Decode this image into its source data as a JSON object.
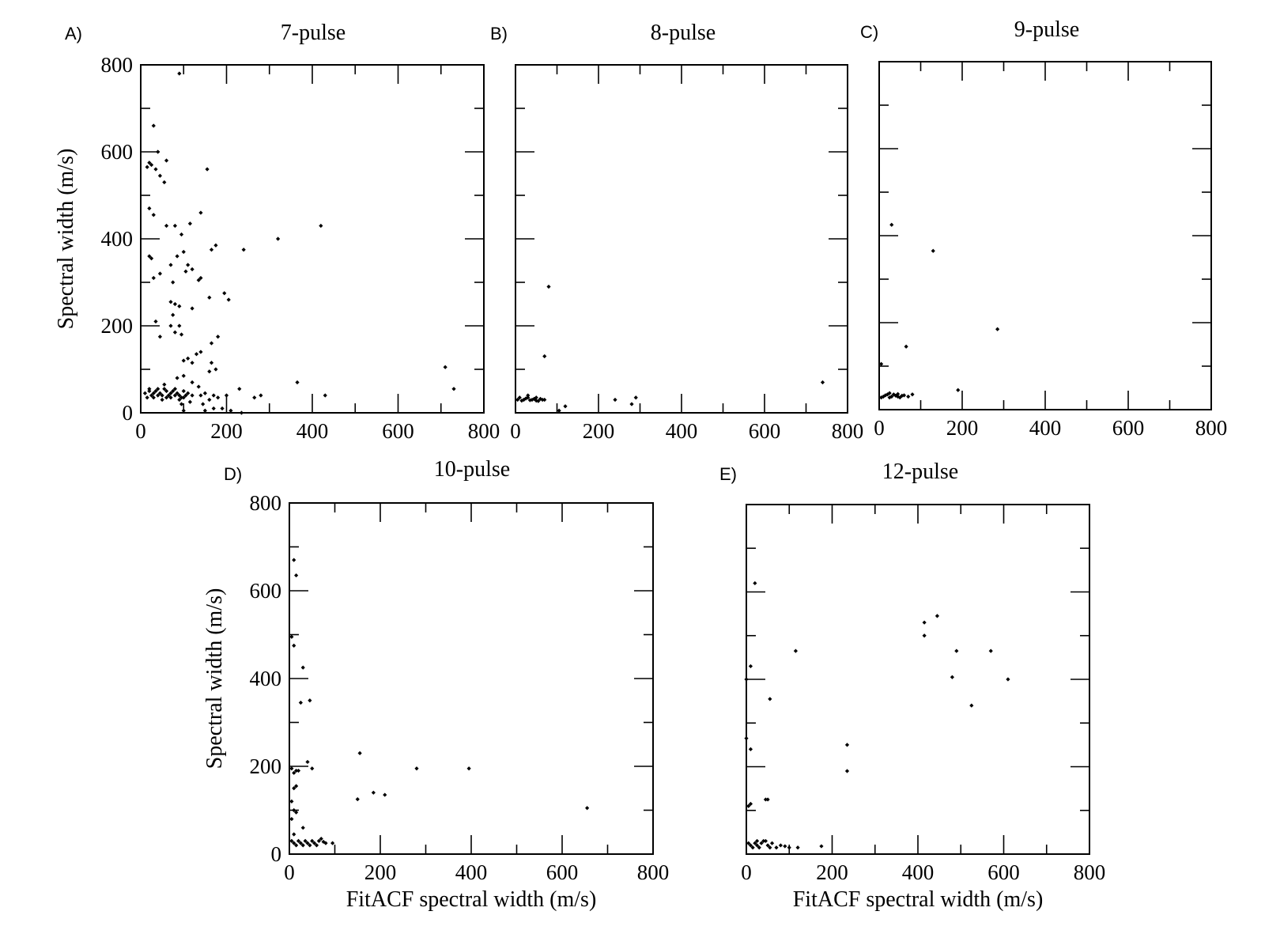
{
  "chart_data": [
    {
      "type": "scatter",
      "panel_letter": "A)",
      "title": "7-pulse",
      "xlabel": "",
      "ylabel": "Spectral width (m/s)",
      "xlim": [
        0,
        800
      ],
      "ylim": [
        0,
        800
      ],
      "xticks": [
        "0",
        "200",
        "400",
        "600",
        "800"
      ],
      "yticks": [
        "0",
        "200",
        "400",
        "600",
        "800"
      ],
      "points": [
        [
          90,
          780
        ],
        [
          30,
          660
        ],
        [
          40,
          600
        ],
        [
          20,
          575
        ],
        [
          60,
          580
        ],
        [
          15,
          565
        ],
        [
          35,
          560
        ],
        [
          25,
          570
        ],
        [
          45,
          545
        ],
        [
          55,
          530
        ],
        [
          155,
          560
        ],
        [
          20,
          470
        ],
        [
          30,
          455
        ],
        [
          115,
          435
        ],
        [
          60,
          430
        ],
        [
          80,
          430
        ],
        [
          95,
          410
        ],
        [
          140,
          460
        ],
        [
          420,
          430
        ],
        [
          320,
          400
        ],
        [
          165,
          375
        ],
        [
          175,
          385
        ],
        [
          240,
          375
        ],
        [
          20,
          360
        ],
        [
          100,
          370
        ],
        [
          25,
          355
        ],
        [
          85,
          360
        ],
        [
          70,
          340
        ],
        [
          110,
          340
        ],
        [
          120,
          330
        ],
        [
          45,
          320
        ],
        [
          105,
          325
        ],
        [
          30,
          310
        ],
        [
          75,
          300
        ],
        [
          140,
          310
        ],
        [
          135,
          305
        ],
        [
          195,
          275
        ],
        [
          205,
          260
        ],
        [
          160,
          265
        ],
        [
          70,
          255
        ],
        [
          80,
          250
        ],
        [
          120,
          240
        ],
        [
          90,
          245
        ],
        [
          75,
          225
        ],
        [
          35,
          210
        ],
        [
          70,
          200
        ],
        [
          90,
          200
        ],
        [
          80,
          185
        ],
        [
          95,
          180
        ],
        [
          180,
          175
        ],
        [
          45,
          175
        ],
        [
          165,
          160
        ],
        [
          140,
          140
        ],
        [
          130,
          135
        ],
        [
          110,
          125
        ],
        [
          100,
          120
        ],
        [
          120,
          115
        ],
        [
          165,
          115
        ],
        [
          175,
          100
        ],
        [
          160,
          95
        ],
        [
          710,
          105
        ],
        [
          730,
          55
        ],
        [
          365,
          70
        ],
        [
          430,
          40
        ],
        [
          10,
          45
        ],
        [
          20,
          50
        ],
        [
          30,
          45
        ],
        [
          40,
          55
        ],
        [
          50,
          40
        ],
        [
          60,
          50
        ],
        [
          70,
          45
        ],
        [
          80,
          55
        ],
        [
          90,
          40
        ],
        [
          100,
          50
        ],
        [
          110,
          45
        ],
        [
          120,
          40
        ],
        [
          30,
          35
        ],
        [
          50,
          30
        ],
        [
          70,
          35
        ],
        [
          90,
          30
        ],
        [
          15,
          35
        ],
        [
          25,
          40
        ],
        [
          35,
          50
        ],
        [
          45,
          45
        ],
        [
          55,
          55
        ],
        [
          65,
          40
        ],
        [
          75,
          50
        ],
        [
          85,
          45
        ],
        [
          95,
          35
        ],
        [
          105,
          40
        ],
        [
          20,
          55
        ],
        [
          40,
          40
        ],
        [
          60,
          35
        ],
        [
          80,
          40
        ],
        [
          100,
          35
        ],
        [
          150,
          45
        ],
        [
          140,
          40
        ],
        [
          160,
          30
        ],
        [
          170,
          40
        ],
        [
          180,
          35
        ],
        [
          200,
          40
        ],
        [
          230,
          55
        ],
        [
          265,
          35
        ],
        [
          280,
          40
        ],
        [
          55,
          65
        ],
        [
          85,
          80
        ],
        [
          100,
          85
        ],
        [
          120,
          70
        ],
        [
          135,
          60
        ],
        [
          95,
          20
        ],
        [
          115,
          25
        ],
        [
          145,
          20
        ],
        [
          170,
          10
        ],
        [
          190,
          10
        ],
        [
          210,
          5
        ],
        [
          235,
          0
        ],
        [
          150,
          5
        ],
        [
          100,
          5
        ]
      ]
    },
    {
      "type": "scatter",
      "panel_letter": "B)",
      "title": "8-pulse",
      "xlabel": "",
      "ylabel": "",
      "xlim": [
        0,
        800
      ],
      "ylim": [
        0,
        800
      ],
      "xticks": [
        "0",
        "200",
        "400",
        "600",
        "800"
      ],
      "yticks": [],
      "points": [
        [
          80,
          290
        ],
        [
          70,
          130
        ],
        [
          740,
          70
        ],
        [
          290,
          35
        ],
        [
          240,
          30
        ],
        [
          280,
          20
        ],
        [
          120,
          15
        ],
        [
          105,
          5
        ],
        [
          10,
          35
        ],
        [
          20,
          30
        ],
        [
          30,
          35
        ],
        [
          40,
          30
        ],
        [
          50,
          28
        ],
        [
          60,
          32
        ],
        [
          70,
          30
        ],
        [
          15,
          28
        ],
        [
          25,
          33
        ],
        [
          35,
          29
        ],
        [
          45,
          32
        ],
        [
          55,
          27
        ],
        [
          65,
          30
        ],
        [
          5,
          30
        ],
        [
          30,
          40
        ],
        [
          50,
          35
        ]
      ]
    },
    {
      "type": "scatter",
      "panel_letter": "C)",
      "title": "9-pulse",
      "xlabel": "",
      "ylabel": "",
      "xlim": [
        0,
        800
      ],
      "ylim": [
        0,
        800
      ],
      "xticks": [
        "0",
        "200",
        "400",
        "600",
        "800"
      ],
      "yticks": [],
      "points": [
        [
          30,
          425
        ],
        [
          130,
          365
        ],
        [
          285,
          185
        ],
        [
          65,
          145
        ],
        [
          5,
          105
        ],
        [
          190,
          45
        ],
        [
          80,
          35
        ],
        [
          10,
          30
        ],
        [
          20,
          35
        ],
        [
          30,
          30
        ],
        [
          40,
          32
        ],
        [
          50,
          28
        ],
        [
          60,
          33
        ],
        [
          70,
          30
        ],
        [
          15,
          33
        ],
        [
          25,
          28
        ],
        [
          35,
          35
        ],
        [
          45,
          30
        ],
        [
          55,
          32
        ],
        [
          5,
          28
        ],
        [
          25,
          38
        ],
        [
          45,
          36
        ]
      ]
    },
    {
      "type": "scatter",
      "panel_letter": "D)",
      "title": "10-pulse",
      "xlabel": "FitACF spectral width (m/s)",
      "ylabel": "Spectral width (m/s)",
      "xlim": [
        0,
        800
      ],
      "ylim": [
        0,
        800
      ],
      "xticks": [
        "0",
        "200",
        "400",
        "600",
        "800"
      ],
      "yticks": [
        "0",
        "200",
        "400",
        "600",
        "800"
      ],
      "points": [
        [
          10,
          670
        ],
        [
          15,
          635
        ],
        [
          5,
          495
        ],
        [
          10,
          475
        ],
        [
          30,
          425
        ],
        [
          25,
          345
        ],
        [
          45,
          350
        ],
        [
          5,
          195
        ],
        [
          15,
          190
        ],
        [
          10,
          185
        ],
        [
          20,
          190
        ],
        [
          40,
          210
        ],
        [
          50,
          195
        ],
        [
          15,
          155
        ],
        [
          10,
          150
        ],
        [
          155,
          230
        ],
        [
          280,
          195
        ],
        [
          395,
          195
        ],
        [
          185,
          140
        ],
        [
          210,
          135
        ],
        [
          150,
          125
        ],
        [
          655,
          105
        ],
        [
          5,
          120
        ],
        [
          10,
          100
        ],
        [
          15,
          95
        ],
        [
          5,
          80
        ],
        [
          30,
          60
        ],
        [
          10,
          45
        ],
        [
          5,
          30
        ],
        [
          10,
          25
        ],
        [
          20,
          30
        ],
        [
          30,
          20
        ],
        [
          40,
          25
        ],
        [
          50,
          30
        ],
        [
          60,
          20
        ],
        [
          70,
          35
        ],
        [
          80,
          25
        ],
        [
          95,
          25
        ],
        [
          15,
          20
        ],
        [
          25,
          25
        ],
        [
          35,
          30
        ],
        [
          45,
          20
        ],
        [
          55,
          25
        ],
        [
          65,
          30
        ],
        [
          75,
          28
        ]
      ]
    },
    {
      "type": "scatter",
      "panel_letter": "E)",
      "title": "12-pulse",
      "xlabel": "FitACF spectral width (m/s)",
      "ylabel": "",
      "xlim": [
        0,
        800
      ],
      "ylim": [
        0,
        800
      ],
      "xticks": [
        "0",
        "200",
        "400",
        "600",
        "800"
      ],
      "yticks": [],
      "points": [
        [
          20,
          620
        ],
        [
          445,
          545
        ],
        [
          415,
          530
        ],
        [
          415,
          500
        ],
        [
          490,
          465
        ],
        [
          570,
          465
        ],
        [
          115,
          465
        ],
        [
          10,
          430
        ],
        [
          0,
          400
        ],
        [
          480,
          405
        ],
        [
          610,
          400
        ],
        [
          55,
          355
        ],
        [
          525,
          340
        ],
        [
          0,
          265
        ],
        [
          10,
          240
        ],
        [
          235,
          250
        ],
        [
          235,
          190
        ],
        [
          50,
          125
        ],
        [
          45,
          125
        ],
        [
          10,
          115
        ],
        [
          5,
          110
        ],
        [
          175,
          18
        ],
        [
          120,
          15
        ],
        [
          10,
          20
        ],
        [
          20,
          25
        ],
        [
          30,
          15
        ],
        [
          40,
          30
        ],
        [
          50,
          20
        ],
        [
          60,
          25
        ],
        [
          70,
          15
        ],
        [
          80,
          20
        ],
        [
          90,
          18
        ],
        [
          100,
          15
        ],
        [
          15,
          15
        ],
        [
          25,
          20
        ],
        [
          35,
          25
        ],
        [
          45,
          30
        ],
        [
          55,
          15
        ],
        [
          5,
          25
        ],
        [
          25,
          30
        ]
      ]
    }
  ]
}
